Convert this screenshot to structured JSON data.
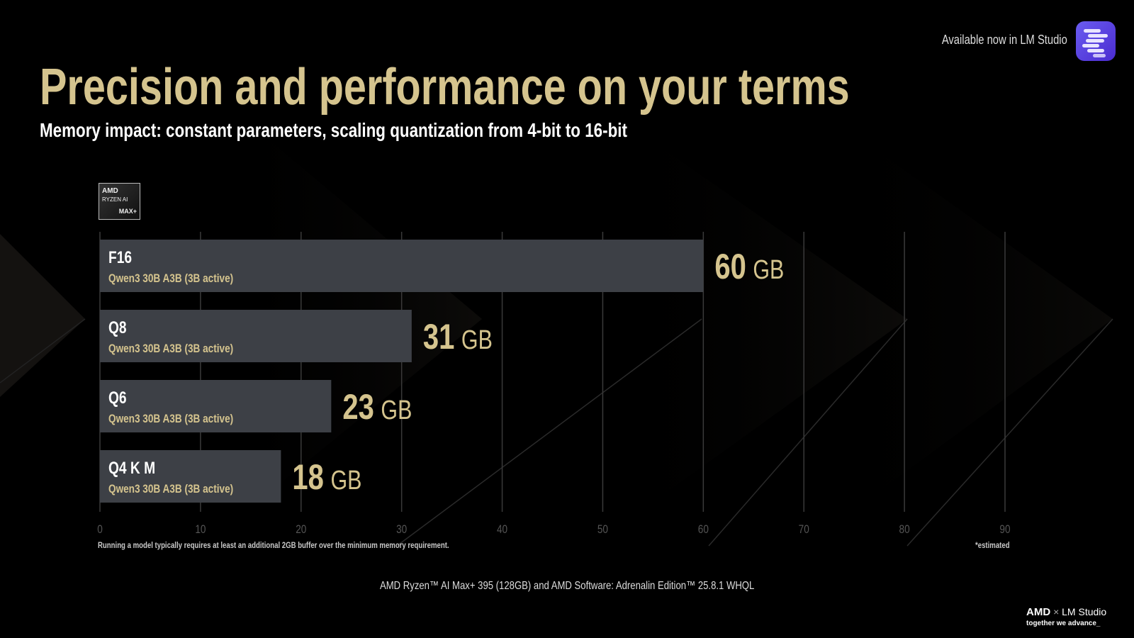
{
  "header": {
    "title": "Precision and performance on your terms",
    "subtitle": "Memory impact: constant parameters, scaling quantization from 4-bit to 16-bit",
    "available": "Available now in LM Studio",
    "app_icon": "lm-studio-icon"
  },
  "badge": {
    "line1": "AMD",
    "line2": "RYZEN AI",
    "line3": "MAX+"
  },
  "chart_data": {
    "type": "bar",
    "orientation": "horizontal",
    "categories": [
      "F16",
      "Q8",
      "Q6",
      "Q4 K M"
    ],
    "sublabels": [
      "Qwen3 30B A3B (3B active)",
      "Qwen3 30B A3B (3B active)",
      "Qwen3 30B A3B (3B active)",
      "Qwen3 30B A3B (3B active)"
    ],
    "values": [
      60,
      31,
      23,
      18
    ],
    "unit": "GB",
    "xlim": [
      0,
      90
    ],
    "xticks": [
      0,
      10,
      20,
      30,
      40,
      50,
      60,
      70,
      80,
      90
    ],
    "grid": true,
    "colors": {
      "bar": "#3d4046",
      "value": "#d5c48e",
      "sublabel": "#d5c48e",
      "grid": "#3a3a3a"
    }
  },
  "footnote": "Running a model typically requires at least  an additional 2GB buffer over the minimum memory requirement.",
  "estimated": "*estimated",
  "system": "AMD Ryzen™ AI Max+ 395 (128GB) and AMD Software: Adrenalin Edition™ 25.8.1 WHQL",
  "brand": {
    "amd": "AMD",
    "x": "×",
    "lm": "LM Studio",
    "tagline": "together we advance_"
  }
}
